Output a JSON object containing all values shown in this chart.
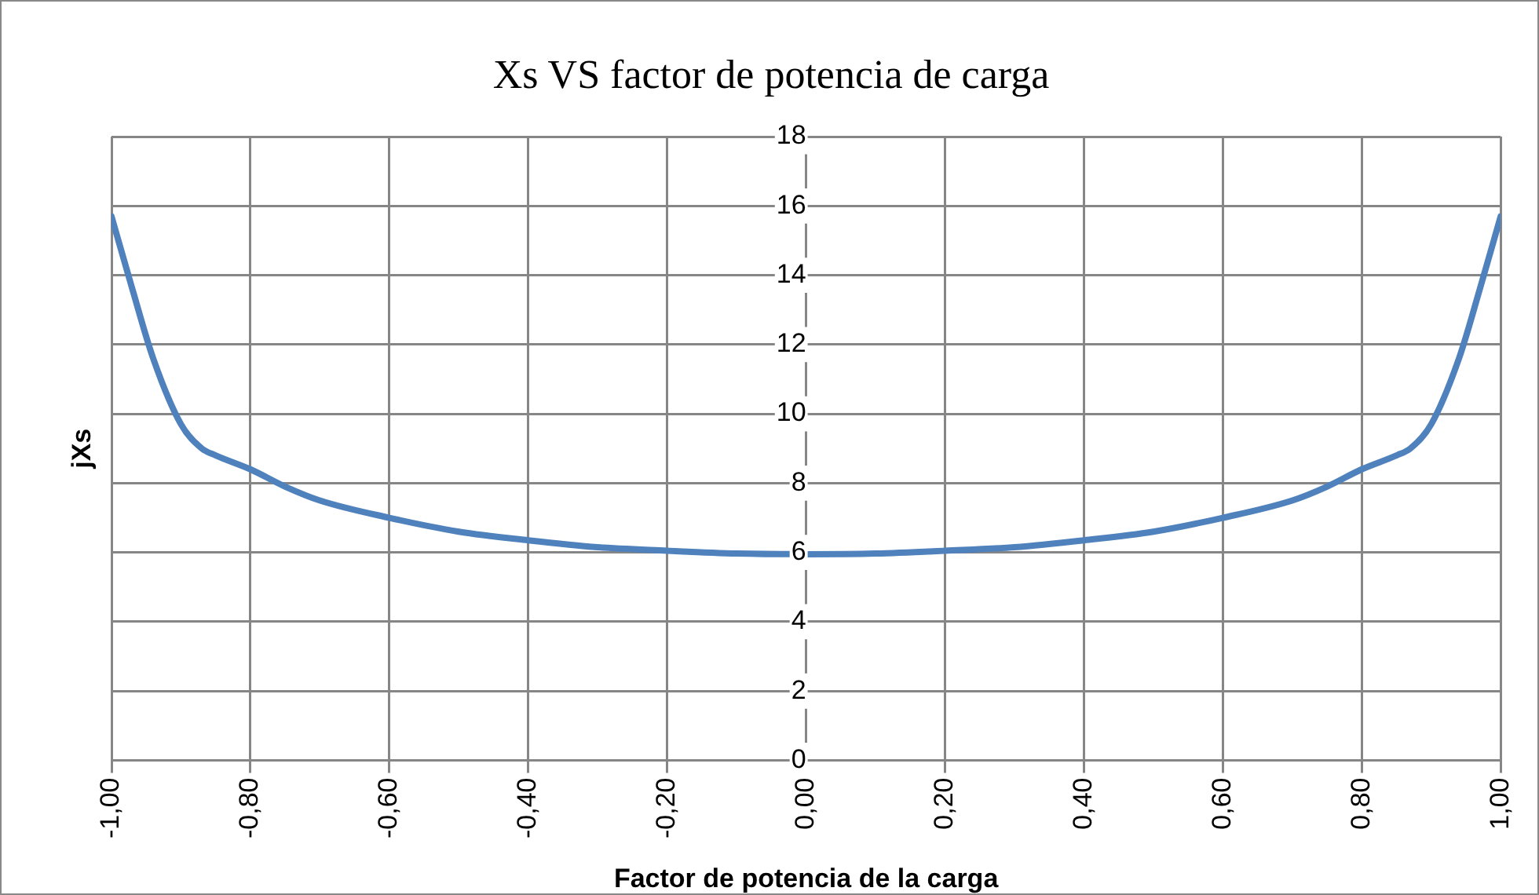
{
  "chart_data": {
    "type": "line",
    "title": "Xs VS factor de potencia de carga",
    "xlabel": "Factor de potencia de la carga",
    "ylabel": "jXs",
    "x": [
      -1,
      -0.97,
      -0.94,
      -0.9,
      -0.87,
      -0.85,
      -0.8,
      -0.75,
      -0.7,
      -0.6,
      -0.5,
      -0.4,
      -0.3,
      -0.2,
      -0.1,
      0,
      0.1,
      0.2,
      0.3,
      0.4,
      0.5,
      0.6,
      0.7,
      0.75,
      0.8,
      0.85,
      0.87,
      0.9,
      0.94,
      0.97,
      1
    ],
    "series": [
      {
        "color": "#4f81bd",
        "values": [
          15.7,
          13.6,
          11.6,
          9.7,
          9.0,
          8.8,
          8.4,
          7.9,
          7.5,
          7.0,
          6.6,
          6.35,
          6.15,
          6.05,
          5.97,
          5.95,
          5.97,
          6.05,
          6.15,
          6.35,
          6.6,
          7.0,
          7.5,
          7.9,
          8.4,
          8.8,
          9.0,
          9.7,
          11.6,
          13.6,
          15.7
        ]
      }
    ],
    "xlim": [
      -1,
      1
    ],
    "xticks": [
      {
        "value": -1,
        "label": "-1,00"
      },
      {
        "value": -0.8,
        "label": "-0,80"
      },
      {
        "value": -0.6,
        "label": "-0,60"
      },
      {
        "value": -0.4,
        "label": "-0,40"
      },
      {
        "value": -0.2,
        "label": "-0,20"
      },
      {
        "value": 0,
        "label": "0,00"
      },
      {
        "value": 0.2,
        "label": "0,20"
      },
      {
        "value": 0.4,
        "label": "0,40"
      },
      {
        "value": 0.6,
        "label": "0,60"
      },
      {
        "value": 0.8,
        "label": "0,80"
      },
      {
        "value": 1,
        "label": "1,00"
      }
    ],
    "ylim": [
      0,
      18
    ],
    "yticks": [
      0,
      2,
      4,
      6,
      8,
      10,
      12,
      14,
      16,
      18
    ],
    "grid": true,
    "legend": false,
    "marker": "none",
    "line_style": "solid"
  }
}
